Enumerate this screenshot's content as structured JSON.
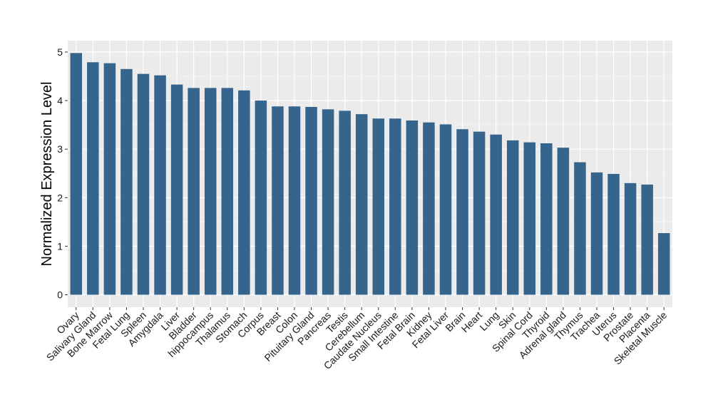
{
  "chart_data": {
    "type": "bar",
    "title": "",
    "xlabel": "",
    "ylabel": "Normalized Expression Level",
    "ylim": [
      -0.25,
      5.2
    ],
    "yticks": [
      0,
      1,
      2,
      3,
      4,
      5
    ],
    "grid": true,
    "colors": {
      "bar": "#35648C",
      "panel": "#EBEBEB",
      "grid_major": "#FFFFFF",
      "grid_minor": "#F4F4F4",
      "tick_text": "#1A1A1A",
      "axis_title": "#000000"
    },
    "categories": [
      "Ovary",
      "Salivary Gland",
      "Bone Marrow",
      "Fetal Lung",
      "Spleen",
      "Amygdala",
      "Liver",
      "Bladder",
      "hippocampus",
      "Thalamus",
      "Stomach",
      "Corpus",
      "Breast",
      "Colon",
      "Pituitary Gland",
      "Pancreas",
      "Testis",
      "Cerebellum",
      "Caudate Nucleus",
      "Small Intestine",
      "Fetal Brain",
      "Kidney",
      "Fetal Liver",
      "Brain",
      "Heart",
      "Lung",
      "Skin",
      "Spinal Cord",
      "Thyroid",
      "Adrenal gland",
      "Thymus",
      "Trachea",
      "Uterus",
      "Prostate",
      "Placenta",
      "Skeletal Muscle"
    ],
    "values": [
      4.98,
      4.79,
      4.77,
      4.65,
      4.55,
      4.52,
      4.33,
      4.26,
      4.26,
      4.26,
      4.21,
      4.0,
      3.88,
      3.88,
      3.87,
      3.82,
      3.79,
      3.72,
      3.63,
      3.63,
      3.59,
      3.55,
      3.51,
      3.41,
      3.36,
      3.3,
      3.18,
      3.14,
      3.12,
      3.03,
      2.73,
      2.52,
      2.49,
      2.3,
      2.27,
      1.27
    ]
  }
}
